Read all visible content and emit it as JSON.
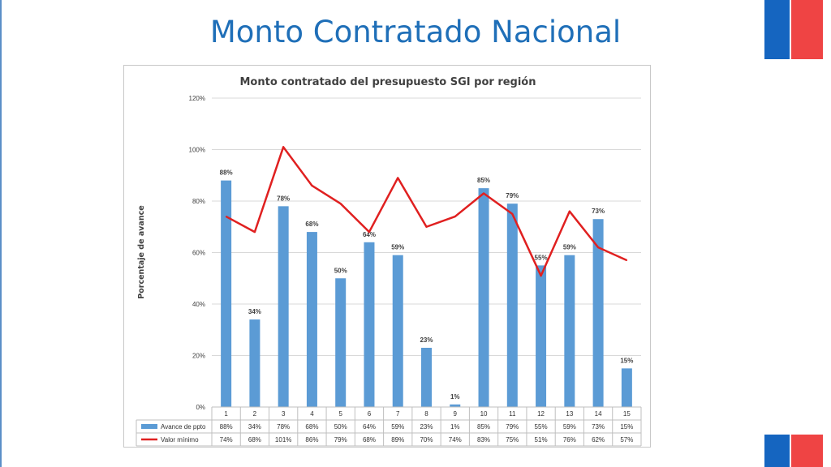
{
  "slide": {
    "title": "Monto Contratado Nacional"
  },
  "colors": {
    "bar": "#5b9bd5",
    "line": "#e02020",
    "title": "#1f6fb8"
  },
  "chart_data": {
    "type": "bar",
    "title": "Monto contratado del presupuesto SGI por región",
    "ylabel": "Porcentaje de avance",
    "xlabel": "",
    "ylim": [
      0,
      120
    ],
    "yticks": [
      "0%",
      "20%",
      "40%",
      "60%",
      "80%",
      "100%",
      "120%"
    ],
    "categories": [
      "1",
      "2",
      "3",
      "4",
      "5",
      "6",
      "7",
      "8",
      "9",
      "10",
      "11",
      "12",
      "13",
      "14",
      "15"
    ],
    "grid": true,
    "legend_placement": "data-table",
    "series": [
      {
        "name": "Avance de ppto",
        "kind": "bar",
        "values": [
          88,
          34,
          78,
          68,
          50,
          64,
          59,
          23,
          1,
          85,
          79,
          55,
          59,
          73,
          15
        ],
        "labels": [
          "88%",
          "34%",
          "78%",
          "68%",
          "50%",
          "64%",
          "59%",
          "23%",
          "1%",
          "85%",
          "79%",
          "55%",
          "59%",
          "73%",
          "15%"
        ]
      },
      {
        "name": "Valor mínimo",
        "kind": "line",
        "values": [
          74,
          68,
          101,
          86,
          79,
          68,
          89,
          70,
          74,
          83,
          75,
          51,
          76,
          62,
          57
        ],
        "labels": [
          "74%",
          "68%",
          "101%",
          "86%",
          "79%",
          "68%",
          "89%",
          "70%",
          "74%",
          "83%",
          "75%",
          "51%",
          "76%",
          "62%",
          "57%"
        ]
      }
    ]
  }
}
